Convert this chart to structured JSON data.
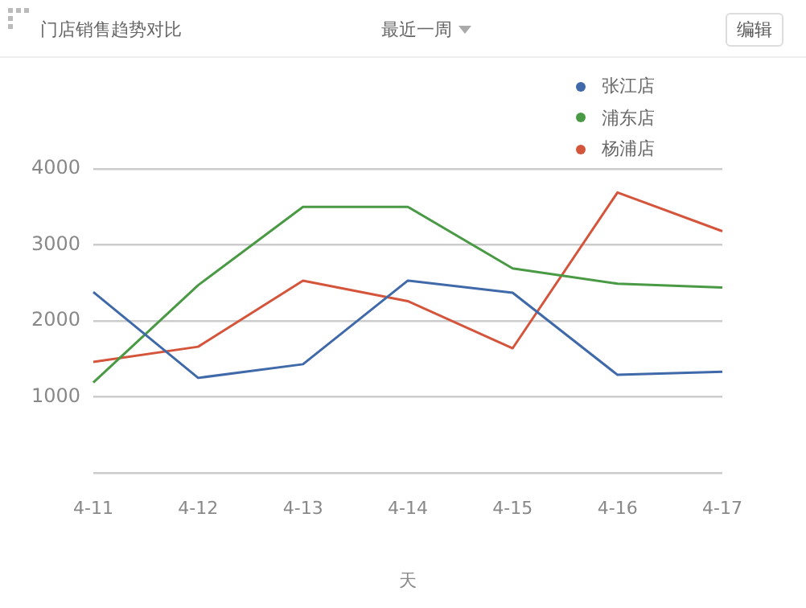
{
  "chart_data": {
    "type": "line",
    "title": "门店销售趋势对比",
    "annotations": [
      "最近一周",
      "编辑"
    ],
    "xlabel": "天",
    "categories": [
      "4-11",
      "4-12",
      "4-13",
      "4-14",
      "4-15",
      "4-16",
      "4-17"
    ],
    "series": [
      {
        "name": "张江店",
        "color": "#3f69a8",
        "values": [
          2380,
          1250,
          1430,
          2530,
          2370,
          1290,
          1330
        ]
      },
      {
        "name": "浦东店",
        "color": "#4a9a45",
        "values": [
          1190,
          2470,
          3500,
          3500,
          2690,
          2490,
          2440
        ]
      },
      {
        "name": "杨浦店",
        "color": "#d4553b",
        "values": [
          1460,
          1660,
          2530,
          2260,
          1640,
          3690,
          3180
        ]
      }
    ],
    "ylim": [
      0,
      4000
    ],
    "yticks": [
      {
        "value": 0,
        "label": null
      },
      1000,
      2000,
      3000,
      4000
    ],
    "grid": "y",
    "legend": "top right",
    "marker": "none",
    "line_style": "solid"
  }
}
